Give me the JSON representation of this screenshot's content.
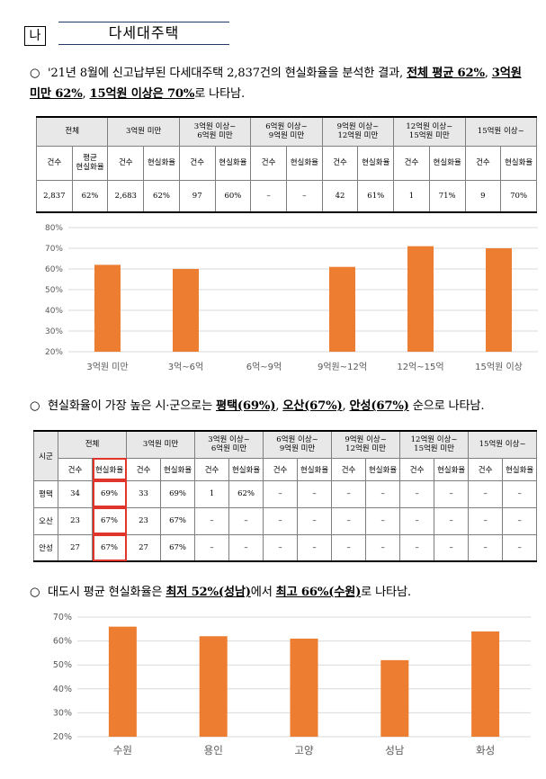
{
  "header": {
    "section_label": "나",
    "section_title": "다세대주택"
  },
  "para1": {
    "bullet": "○",
    "text": "'21년 8월에 신고납부된 다세대주택 2,837건의 현실화율을 분석한 결과,",
    "hl1": "전체 평균 62%",
    "sep1": ",",
    "hl2": "3억원 미만 62%",
    "sep2": ",",
    "hl3": "15억원 이상은 70%",
    "tail": "로 나타남."
  },
  "table1": {
    "groups": [
      "전체",
      "3억원 미만",
      "3억원 이상~\n6억원 미만",
      "6억원 이상~\n9억원 미만",
      "9억원 이상~\n12억원 미만",
      "12억원 이상~\n15억원 미만",
      "15억원 이상~"
    ],
    "sub_total": [
      "건수",
      "평균\n현실화율"
    ],
    "sub": [
      "건수",
      "현실화율"
    ],
    "row": [
      "2,837",
      "62%",
      "2,683",
      "62%",
      "97",
      "60%",
      "–",
      "–",
      "42",
      "61%",
      "1",
      "71%",
      "9",
      "70%"
    ]
  },
  "chart_data": [
    {
      "type": "bar",
      "categories": [
        "3억원 미만",
        "3억~6억",
        "6억~9억",
        "9억원~12억",
        "12억~15억",
        "15억원 이상"
      ],
      "values": [
        62,
        60,
        null,
        61,
        71,
        70
      ],
      "yticks": [
        "20%",
        "30%",
        "40%",
        "50%",
        "60%",
        "70%",
        "80%"
      ],
      "ylim": [
        20,
        80
      ],
      "grid": true,
      "color": "#ed7d31"
    },
    {
      "type": "bar",
      "categories": [
        "수원",
        "용인",
        "고양",
        "성남",
        "화성"
      ],
      "values": [
        66,
        62,
        61,
        52,
        64
      ],
      "yticks": [
        "20%",
        "30%",
        "40%",
        "50%",
        "60%",
        "70%"
      ],
      "ylim": [
        20,
        70
      ],
      "grid": true,
      "color": "#ed7d31"
    }
  ],
  "para2": {
    "bullet": "○",
    "text": "현실화율이 가장 높은 시·군으로는",
    "hl1": "평택(69%)",
    "sep1": ",",
    "hl2": "오산(67%)",
    "sep2": ",",
    "hl3": "안성(67%)",
    "tail": "순으로 나타남."
  },
  "table2": {
    "corner": "시군",
    "groups": [
      "전체",
      "3억원 미만",
      "3억원 이상~\n6억원 미만",
      "6억원 이상~\n9억원 미만",
      "9억원 이상~\n12억원 미만",
      "12억원 이상~\n15억원 미만",
      "15억원 이상~"
    ],
    "sub": [
      "건수",
      "현실화율"
    ],
    "rows": [
      {
        "name": "평택",
        "cells": [
          "34",
          "69%",
          "33",
          "69%",
          "1",
          "62%",
          "–",
          "–",
          "–",
          "–",
          "–",
          "–",
          "–",
          "–"
        ]
      },
      {
        "name": "오산",
        "cells": [
          "23",
          "67%",
          "23",
          "67%",
          "–",
          "–",
          "–",
          "–",
          "–",
          "–",
          "–",
          "–",
          "–",
          "–"
        ]
      },
      {
        "name": "안성",
        "cells": [
          "27",
          "67%",
          "27",
          "67%",
          "–",
          "–",
          "–",
          "–",
          "–",
          "–",
          "–",
          "–",
          "–",
          "–"
        ]
      }
    ]
  },
  "para3": {
    "bullet": "○",
    "text": "대도시 평균 현실화율은",
    "hl1": "최저 52%(성남)",
    "mid": "에서",
    "hl2": "최고 66%(수원)",
    "tail": "로 나타남."
  }
}
